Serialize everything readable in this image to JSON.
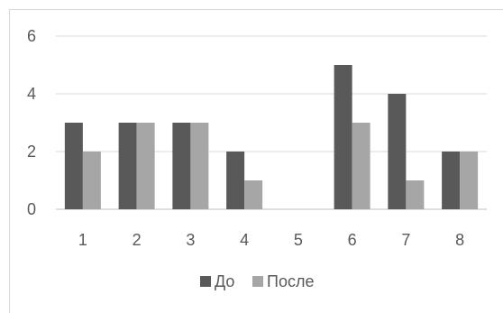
{
  "chart_data": {
    "type": "bar",
    "title": "",
    "xlabel": "",
    "ylabel": "",
    "categories": [
      "1",
      "2",
      "3",
      "4",
      "5",
      "6",
      "7",
      "8"
    ],
    "series": [
      {
        "name": "До",
        "values": [
          3,
          3,
          3,
          2,
          0,
          5,
          4,
          2
        ],
        "color": "#595959"
      },
      {
        "name": "После",
        "values": [
          2,
          3,
          3,
          1,
          0,
          3,
          1,
          2
        ],
        "color": "#a6a6a6"
      }
    ],
    "ylim": [
      0,
      6
    ],
    "yticks": [
      "0",
      "2",
      "4",
      "6"
    ],
    "grid": true,
    "gridColor": "#d9d9d9",
    "legend": "bottom"
  }
}
